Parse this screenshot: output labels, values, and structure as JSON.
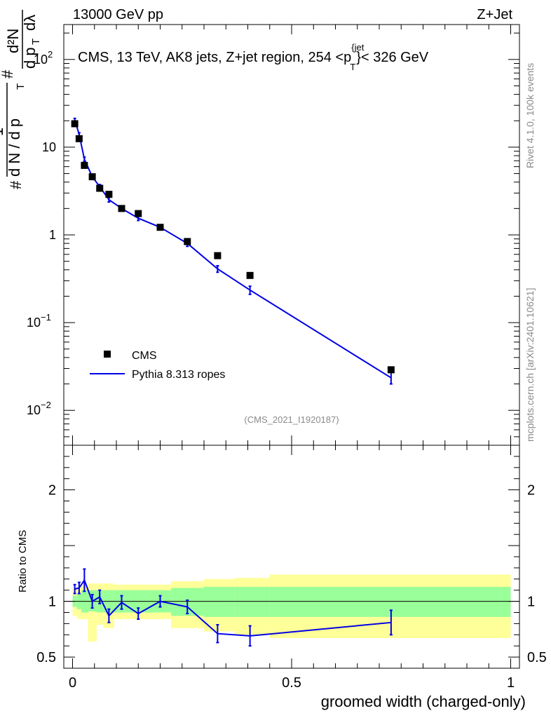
{
  "header": {
    "left": "13000 GeV pp",
    "right": "Z+Jet"
  },
  "side_labels": {
    "top": "Rivet 4.1.0,  100k events",
    "bottom": "mcplots.cern.ch [arXiv:2401.10621]"
  },
  "chart_data": {
    "type": "scatter",
    "title": "CMS, 13 TeV, AK8 jets, Z+jet region, 254 <p_T^{jet}}< 326 GeV",
    "title_parts": {
      "main": "CMS, 13 TeV, AK8 jets, Z+jet region, 254 <p",
      "sup": "{jet",
      "sub": "T",
      "tail": "}< 326 GeV"
    },
    "analysis_id": "(CMS_2021_I1920187)",
    "xlabel": "groomed width (charged-only)",
    "ylabel_parts": {
      "hash1": "#",
      "one": "1",
      "dN": "d N / d p",
      "T1": "T",
      "hash2": "#",
      "d2N": "d²N",
      "dpT": "d p",
      "T2": "T",
      "dlam": "dλ"
    },
    "ratio_ylabel": "Ratio to CMS",
    "xlim": [
      -0.02,
      1.02
    ],
    "ylim_log": [
      0.004,
      250
    ],
    "ratio_ylim": [
      0.4,
      2.4
    ],
    "x_ticks": [
      {
        "v": 0,
        "label": "0"
      },
      {
        "v": 0.5,
        "label": "0.5"
      },
      {
        "v": 1,
        "label": "1"
      }
    ],
    "y_ticks": [
      {
        "v": 0.01,
        "base": "10",
        "exp": "−2"
      },
      {
        "v": 0.1,
        "base": "10",
        "exp": "−1"
      },
      {
        "v": 1,
        "base": "1",
        "exp": ""
      },
      {
        "v": 10,
        "base": "10",
        "exp": ""
      },
      {
        "v": 100,
        "base": "10",
        "exp": "2"
      }
    ],
    "ratio_ticks": [
      {
        "v": 0.5,
        "label": "0.5"
      },
      {
        "v": 1,
        "label": "1"
      },
      {
        "v": 2,
        "label": "2"
      }
    ],
    "legend": {
      "position": "middle-left",
      "data_label": "CMS",
      "mc_label": "Pythia 8.313 ropes"
    },
    "data_series": {
      "name": "CMS",
      "x": [
        0.005,
        0.015,
        0.027,
        0.045,
        0.062,
        0.083,
        0.112,
        0.15,
        0.2,
        0.262,
        0.331,
        0.405,
        0.727
      ],
      "y": [
        18.5,
        12.5,
        6.2,
        4.6,
        3.4,
        2.9,
        2.0,
        1.75,
        1.22,
        0.84,
        0.58,
        0.345,
        0.029
      ]
    },
    "mc_series": {
      "name": "Pythia 8.313 ropes",
      "x": [
        0.005,
        0.015,
        0.027,
        0.045,
        0.062,
        0.083,
        0.112,
        0.15,
        0.2,
        0.262,
        0.331,
        0.405,
        0.727
      ],
      "y": [
        20.5,
        14.0,
        7.3,
        4.6,
        3.55,
        2.52,
        2.0,
        1.55,
        1.22,
        0.8,
        0.41,
        0.235,
        0.0235
      ],
      "err": [
        0.8,
        0.6,
        0.4,
        0.25,
        0.2,
        0.15,
        0.1,
        0.09,
        0.07,
        0.06,
        0.035,
        0.025,
        0.0035
      ]
    },
    "ratio_series": {
      "x": [
        0.005,
        0.015,
        0.027,
        0.045,
        0.062,
        0.083,
        0.112,
        0.15,
        0.2,
        0.262,
        0.331,
        0.405,
        0.727
      ],
      "y": [
        1.11,
        1.12,
        1.19,
        1.0,
        1.04,
        0.87,
        0.99,
        0.89,
        1.0,
        0.95,
        0.71,
        0.69,
        0.81
      ],
      "err": [
        0.04,
        0.05,
        0.1,
        0.06,
        0.06,
        0.06,
        0.06,
        0.05,
        0.05,
        0.06,
        0.08,
        0.09,
        0.11
      ]
    },
    "bands": {
      "edges": [
        0.0,
        0.01,
        0.02,
        0.035,
        0.055,
        0.07,
        0.095,
        0.13,
        0.175,
        0.225,
        0.3,
        0.37,
        0.45,
        1.0
      ],
      "inner": [
        [
          0.95,
          1.05
        ],
        [
          0.93,
          1.07
        ],
        [
          0.9,
          1.1
        ],
        [
          0.91,
          1.1
        ],
        [
          0.9,
          1.1
        ],
        [
          0.9,
          1.1
        ],
        [
          0.9,
          1.1
        ],
        [
          0.9,
          1.1
        ],
        [
          0.9,
          1.1
        ],
        [
          0.87,
          1.12
        ],
        [
          0.86,
          1.13
        ],
        [
          0.86,
          1.13
        ],
        [
          0.86,
          1.13
        ]
      ],
      "outer": [
        [
          0.87,
          1.12
        ],
        [
          0.84,
          1.14
        ],
        [
          0.84,
          1.14
        ],
        [
          0.64,
          1.16
        ],
        [
          0.79,
          1.16
        ],
        [
          0.76,
          1.16
        ],
        [
          0.84,
          1.15
        ],
        [
          0.84,
          1.15
        ],
        [
          0.84,
          1.15
        ],
        [
          0.76,
          1.18
        ],
        [
          0.73,
          1.2
        ],
        [
          0.7,
          1.21
        ],
        [
          0.67,
          1.24
        ]
      ]
    }
  }
}
